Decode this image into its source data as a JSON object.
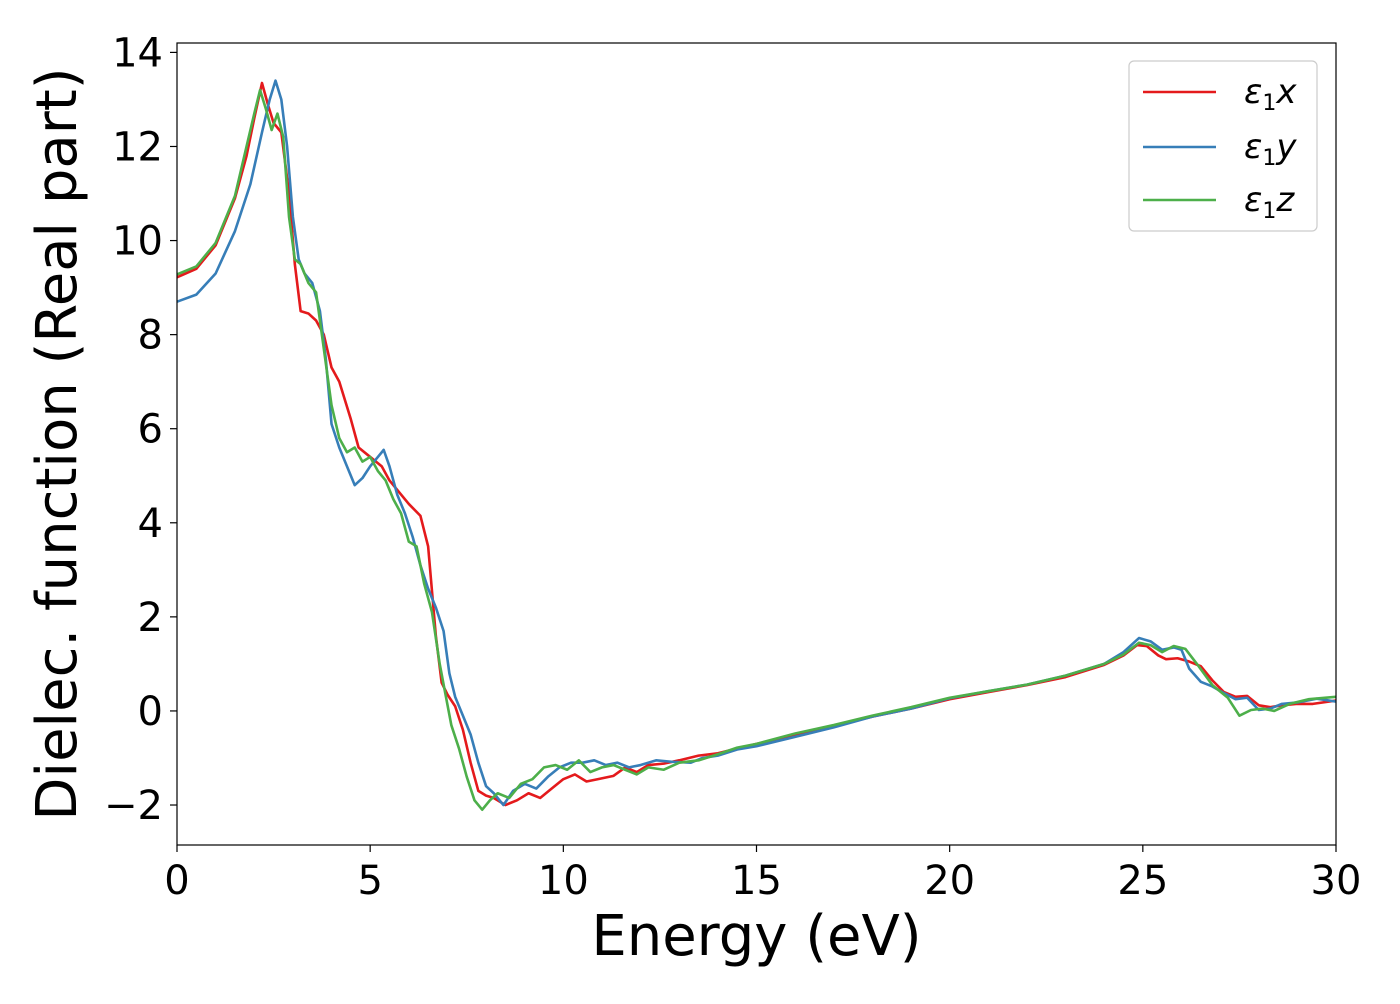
{
  "chart_data": {
    "type": "line",
    "title": "",
    "xlabel": "Energy (eV)",
    "ylabel": "Dielec. function (Real part)",
    "xlim": [
      0,
      30
    ],
    "ylim": [
      -2.85,
      14.2
    ],
    "xticks": [
      0,
      5,
      10,
      15,
      20,
      25,
      30
    ],
    "yticks": [
      -2,
      0,
      2,
      4,
      6,
      8,
      10,
      12,
      14
    ],
    "xtick_labels": [
      "0",
      "5",
      "10",
      "15",
      "20",
      "25",
      "30"
    ],
    "ytick_labels": [
      "−2",
      "0",
      "2",
      "4",
      "6",
      "8",
      "10",
      "12",
      "14"
    ],
    "grid": false,
    "legend_position": "top-right",
    "series": [
      {
        "name": "ε₁x",
        "legend_main": "ε",
        "legend_sub": "1",
        "legend_var": "x",
        "color": "#e41a1c",
        "points": [
          [
            0,
            9.22
          ],
          [
            0.5,
            9.4
          ],
          [
            1.0,
            9.9
          ],
          [
            1.5,
            10.9
          ],
          [
            1.8,
            11.8
          ],
          [
            2.0,
            12.6
          ],
          [
            2.2,
            13.35
          ],
          [
            2.35,
            12.9
          ],
          [
            2.5,
            12.5
          ],
          [
            2.7,
            12.3
          ],
          [
            2.9,
            11.0
          ],
          [
            3.05,
            9.5
          ],
          [
            3.2,
            8.5
          ],
          [
            3.4,
            8.45
          ],
          [
            3.6,
            8.3
          ],
          [
            3.8,
            8.0
          ],
          [
            4.0,
            7.3
          ],
          [
            4.2,
            7.0
          ],
          [
            4.5,
            6.2
          ],
          [
            4.7,
            5.6
          ],
          [
            5.0,
            5.4
          ],
          [
            5.3,
            5.2
          ],
          [
            5.5,
            4.9
          ],
          [
            5.8,
            4.6
          ],
          [
            6.0,
            4.4
          ],
          [
            6.3,
            4.15
          ],
          [
            6.5,
            3.5
          ],
          [
            6.7,
            1.6
          ],
          [
            6.85,
            0.6
          ],
          [
            7.0,
            0.35
          ],
          [
            7.2,
            0.1
          ],
          [
            7.4,
            -0.4
          ],
          [
            7.6,
            -1.1
          ],
          [
            7.8,
            -1.7
          ],
          [
            8.0,
            -1.8
          ],
          [
            8.2,
            -1.85
          ],
          [
            8.5,
            -2.0
          ],
          [
            8.8,
            -1.9
          ],
          [
            9.1,
            -1.75
          ],
          [
            9.4,
            -1.85
          ],
          [
            9.7,
            -1.65
          ],
          [
            10.0,
            -1.45
          ],
          [
            10.3,
            -1.35
          ],
          [
            10.6,
            -1.5
          ],
          [
            10.9,
            -1.45
          ],
          [
            11.3,
            -1.38
          ],
          [
            11.6,
            -1.2
          ],
          [
            11.9,
            -1.3
          ],
          [
            12.2,
            -1.15
          ],
          [
            12.6,
            -1.12
          ],
          [
            13.0,
            -1.05
          ],
          [
            13.5,
            -0.95
          ],
          [
            14.0,
            -0.9
          ],
          [
            14.5,
            -0.8
          ],
          [
            15.0,
            -0.7
          ],
          [
            16.0,
            -0.52
          ],
          [
            17.0,
            -0.32
          ],
          [
            18.0,
            -0.12
          ],
          [
            19.0,
            0.05
          ],
          [
            20.0,
            0.25
          ],
          [
            21.0,
            0.4
          ],
          [
            22.0,
            0.55
          ],
          [
            23.0,
            0.72
          ],
          [
            24.0,
            0.98
          ],
          [
            24.5,
            1.18
          ],
          [
            24.85,
            1.4
          ],
          [
            25.1,
            1.38
          ],
          [
            25.4,
            1.18
          ],
          [
            25.6,
            1.1
          ],
          [
            25.9,
            1.12
          ],
          [
            26.2,
            1.05
          ],
          [
            26.5,
            0.95
          ],
          [
            26.8,
            0.65
          ],
          [
            27.1,
            0.4
          ],
          [
            27.4,
            0.3
          ],
          [
            27.7,
            0.32
          ],
          [
            28.0,
            0.12
          ],
          [
            28.3,
            0.08
          ],
          [
            28.6,
            0.12
          ],
          [
            29.0,
            0.15
          ],
          [
            29.4,
            0.15
          ],
          [
            30.0,
            0.22
          ]
        ]
      },
      {
        "name": "ε₁y",
        "legend_main": "ε",
        "legend_sub": "1",
        "legend_var": "y",
        "color": "#377eb8",
        "points": [
          [
            0,
            8.7
          ],
          [
            0.5,
            8.85
          ],
          [
            1.0,
            9.3
          ],
          [
            1.5,
            10.2
          ],
          [
            1.9,
            11.2
          ],
          [
            2.2,
            12.3
          ],
          [
            2.4,
            13.0
          ],
          [
            2.55,
            13.4
          ],
          [
            2.7,
            13.0
          ],
          [
            2.85,
            12.0
          ],
          [
            3.0,
            10.5
          ],
          [
            3.15,
            9.6
          ],
          [
            3.3,
            9.3
          ],
          [
            3.5,
            9.1
          ],
          [
            3.7,
            8.5
          ],
          [
            3.85,
            7.5
          ],
          [
            4.0,
            6.1
          ],
          [
            4.2,
            5.6
          ],
          [
            4.4,
            5.2
          ],
          [
            4.6,
            4.8
          ],
          [
            4.8,
            4.95
          ],
          [
            5.0,
            5.2
          ],
          [
            5.2,
            5.4
          ],
          [
            5.35,
            5.55
          ],
          [
            5.5,
            5.2
          ],
          [
            5.7,
            4.6
          ],
          [
            5.9,
            4.2
          ],
          [
            6.1,
            3.7
          ],
          [
            6.3,
            3.1
          ],
          [
            6.5,
            2.6
          ],
          [
            6.7,
            2.2
          ],
          [
            6.9,
            1.7
          ],
          [
            7.05,
            0.8
          ],
          [
            7.2,
            0.3
          ],
          [
            7.4,
            -0.1
          ],
          [
            7.6,
            -0.5
          ],
          [
            7.8,
            -1.1
          ],
          [
            8.0,
            -1.6
          ],
          [
            8.2,
            -1.75
          ],
          [
            8.45,
            -2.0
          ],
          [
            8.7,
            -1.7
          ],
          [
            9.0,
            -1.55
          ],
          [
            9.3,
            -1.65
          ],
          [
            9.6,
            -1.4
          ],
          [
            9.9,
            -1.2
          ],
          [
            10.2,
            -1.1
          ],
          [
            10.5,
            -1.1
          ],
          [
            10.8,
            -1.05
          ],
          [
            11.1,
            -1.15
          ],
          [
            11.4,
            -1.1
          ],
          [
            11.7,
            -1.2
          ],
          [
            12.0,
            -1.15
          ],
          [
            12.4,
            -1.05
          ],
          [
            12.8,
            -1.08
          ],
          [
            13.3,
            -1.1
          ],
          [
            13.6,
            -1.0
          ],
          [
            14.0,
            -0.95
          ],
          [
            14.5,
            -0.82
          ],
          [
            15.0,
            -0.75
          ],
          [
            16.0,
            -0.55
          ],
          [
            17.0,
            -0.35
          ],
          [
            18.0,
            -0.12
          ],
          [
            19.0,
            0.05
          ],
          [
            20.0,
            0.27
          ],
          [
            21.0,
            0.42
          ],
          [
            22.0,
            0.56
          ],
          [
            23.0,
            0.75
          ],
          [
            24.0,
            1.0
          ],
          [
            24.5,
            1.25
          ],
          [
            24.9,
            1.55
          ],
          [
            25.2,
            1.48
          ],
          [
            25.5,
            1.3
          ],
          [
            25.8,
            1.35
          ],
          [
            26.0,
            1.3
          ],
          [
            26.2,
            0.9
          ],
          [
            26.5,
            0.62
          ],
          [
            26.8,
            0.52
          ],
          [
            27.1,
            0.38
          ],
          [
            27.4,
            0.25
          ],
          [
            27.7,
            0.28
          ],
          [
            28.0,
            0.02
          ],
          [
            28.3,
            0.05
          ],
          [
            28.6,
            0.15
          ],
          [
            29.0,
            0.18
          ],
          [
            29.5,
            0.26
          ],
          [
            30.0,
            0.2
          ]
        ]
      },
      {
        "name": "ε₁z",
        "legend_main": "ε",
        "legend_sub": "1",
        "legend_var": "z",
        "color": "#4daf4a",
        "points": [
          [
            0,
            9.28
          ],
          [
            0.5,
            9.45
          ],
          [
            1.0,
            9.95
          ],
          [
            1.5,
            10.95
          ],
          [
            1.8,
            12.0
          ],
          [
            2.0,
            12.7
          ],
          [
            2.15,
            13.2
          ],
          [
            2.3,
            12.8
          ],
          [
            2.45,
            12.35
          ],
          [
            2.6,
            12.7
          ],
          [
            2.75,
            12.2
          ],
          [
            2.9,
            10.5
          ],
          [
            3.05,
            9.6
          ],
          [
            3.2,
            9.5
          ],
          [
            3.4,
            9.1
          ],
          [
            3.6,
            8.9
          ],
          [
            3.8,
            7.7
          ],
          [
            4.0,
            6.5
          ],
          [
            4.2,
            5.8
          ],
          [
            4.4,
            5.5
          ],
          [
            4.6,
            5.6
          ],
          [
            4.8,
            5.3
          ],
          [
            5.0,
            5.4
          ],
          [
            5.2,
            5.1
          ],
          [
            5.4,
            4.9
          ],
          [
            5.6,
            4.5
          ],
          [
            5.8,
            4.2
          ],
          [
            6.0,
            3.6
          ],
          [
            6.2,
            3.5
          ],
          [
            6.4,
            2.7
          ],
          [
            6.6,
            2.1
          ],
          [
            6.8,
            1.0
          ],
          [
            6.95,
            0.35
          ],
          [
            7.1,
            -0.3
          ],
          [
            7.3,
            -0.8
          ],
          [
            7.5,
            -1.4
          ],
          [
            7.7,
            -1.9
          ],
          [
            7.9,
            -2.1
          ],
          [
            8.1,
            -1.9
          ],
          [
            8.3,
            -1.75
          ],
          [
            8.6,
            -1.85
          ],
          [
            8.9,
            -1.55
          ],
          [
            9.2,
            -1.45
          ],
          [
            9.5,
            -1.2
          ],
          [
            9.8,
            -1.15
          ],
          [
            10.1,
            -1.25
          ],
          [
            10.4,
            -1.05
          ],
          [
            10.7,
            -1.3
          ],
          [
            11.0,
            -1.2
          ],
          [
            11.3,
            -1.15
          ],
          [
            11.6,
            -1.25
          ],
          [
            11.9,
            -1.35
          ],
          [
            12.2,
            -1.2
          ],
          [
            12.6,
            -1.25
          ],
          [
            13.0,
            -1.1
          ],
          [
            13.5,
            -1.05
          ],
          [
            14.0,
            -0.92
          ],
          [
            14.5,
            -0.78
          ],
          [
            15.0,
            -0.7
          ],
          [
            16.0,
            -0.48
          ],
          [
            17.0,
            -0.3
          ],
          [
            18.0,
            -0.1
          ],
          [
            19.0,
            0.08
          ],
          [
            20.0,
            0.28
          ],
          [
            21.0,
            0.42
          ],
          [
            22.0,
            0.56
          ],
          [
            23.0,
            0.75
          ],
          [
            24.0,
            1.0
          ],
          [
            24.5,
            1.2
          ],
          [
            24.9,
            1.45
          ],
          [
            25.2,
            1.4
          ],
          [
            25.5,
            1.25
          ],
          [
            25.8,
            1.38
          ],
          [
            26.1,
            1.32
          ],
          [
            26.4,
            1.0
          ],
          [
            26.8,
            0.55
          ],
          [
            27.2,
            0.28
          ],
          [
            27.5,
            -0.1
          ],
          [
            27.8,
            0.02
          ],
          [
            28.1,
            0.05
          ],
          [
            28.4,
            0.0
          ],
          [
            28.8,
            0.15
          ],
          [
            29.3,
            0.25
          ],
          [
            30.0,
            0.3
          ]
        ]
      }
    ]
  }
}
